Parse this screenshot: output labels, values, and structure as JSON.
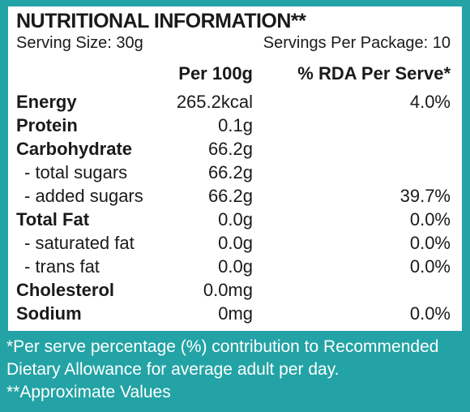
{
  "title": "NUTRITIONAL INFORMATION**",
  "serving_size": "Serving Size: 30g",
  "servings_per_package": "Servings Per Package: 10",
  "headers": {
    "per100": "Per 100g",
    "rda": "% RDA Per Serve*"
  },
  "rows": [
    {
      "name": "Energy",
      "per100": "265.2kcal",
      "rda": "4.0%"
    },
    {
      "name": "Protein",
      "per100": "0.1g",
      "rda": ""
    },
    {
      "name": "Carbohydrate",
      "per100": "66.2g",
      "rda": ""
    },
    {
      "name": "- total sugars",
      "per100": "66.2g",
      "rda": ""
    },
    {
      "name": "- added sugars",
      "per100": "66.2g",
      "rda": "39.7%"
    },
    {
      "name": "Total Fat",
      "per100": "0.0g",
      "rda": "0.0%"
    },
    {
      "name": "- saturated fat",
      "per100": "0.0g",
      "rda": "0.0%"
    },
    {
      "name": "- trans fat",
      "per100": "0.0g",
      "rda": "0.0%"
    },
    {
      "name": "Cholesterol",
      "per100": "0.0mg",
      "rda": ""
    },
    {
      "name": "Sodium",
      "per100": "0mg",
      "rda": "0.0%"
    }
  ],
  "footer": {
    "line1": "*Per serve percentage (%) contribution to Recommended",
    "line2": "Dietary Allowance for average adult per day.",
    "line3": "**Approximate Values"
  },
  "colors": {
    "background": "#23a3a5",
    "panel": "#ffffff",
    "text": "#1a1a1a"
  }
}
